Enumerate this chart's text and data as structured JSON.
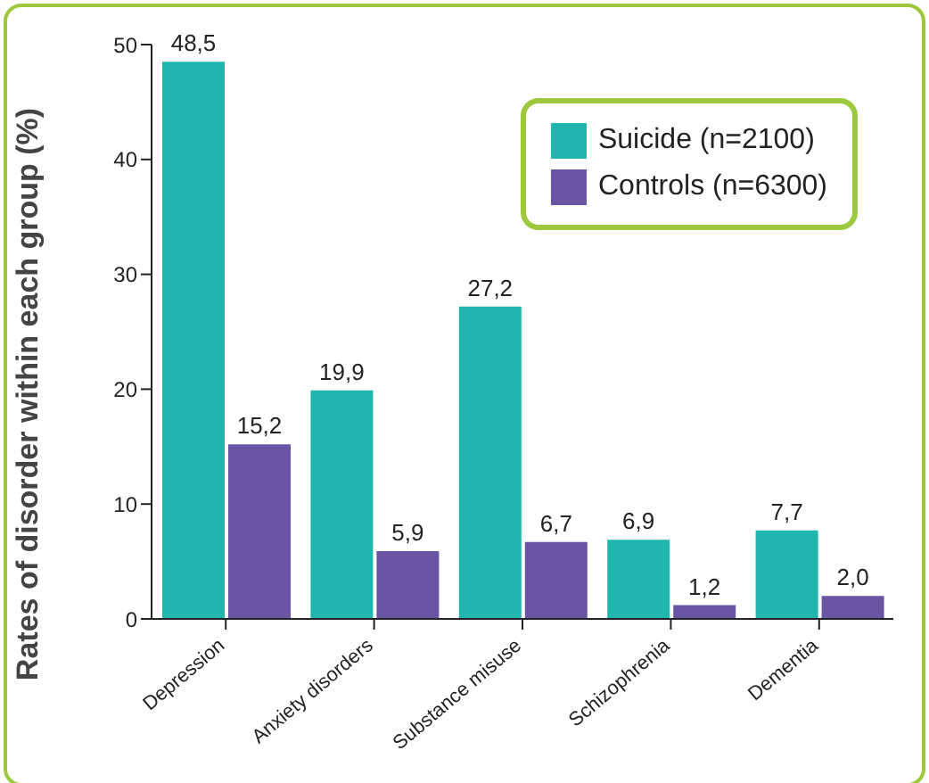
{
  "chart_data": {
    "type": "bar",
    "ylabel": "Rates of disorder within each group (%)",
    "categories": [
      "Depression",
      "Anxiety disorders",
      "Substance misuse",
      "Schizophrenia",
      "Dementia"
    ],
    "series": [
      {
        "name": "Suicide (n=2100)",
        "color": "#20b5ad",
        "values": [
          48.5,
          19.9,
          27.2,
          6.9,
          7.7
        ],
        "value_labels": [
          "48,5",
          "19,9",
          "27,2",
          "6,9",
          "7,7"
        ]
      },
      {
        "name": "Controls (n=6300)",
        "color": "#6a55a5",
        "values": [
          15.2,
          5.9,
          6.7,
          1.2,
          2.0
        ],
        "value_labels": [
          "15,2",
          "5,9",
          "6,7",
          "1,2",
          "2,0"
        ]
      }
    ],
    "ylim": [
      0,
      50
    ],
    "yticks": [
      0,
      10,
      20,
      30,
      40,
      50
    ],
    "grid": false,
    "legend": "top right"
  }
}
